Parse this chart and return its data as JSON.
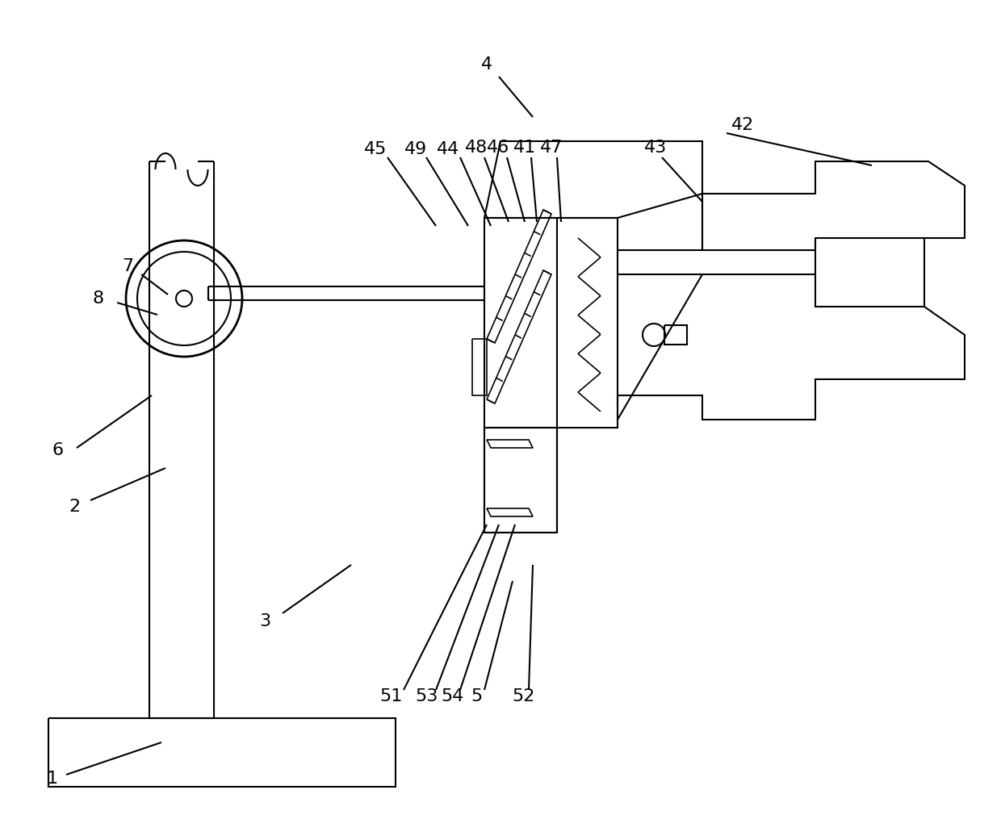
{
  "bg_color": "#ffffff",
  "lc": "#000000",
  "lw": 1.5,
  "lw2": 1.2,
  "fig_width": 12.4,
  "fig_height": 10.1
}
